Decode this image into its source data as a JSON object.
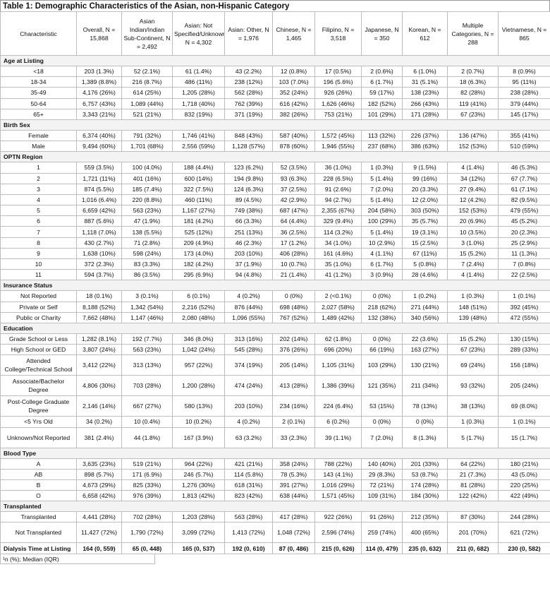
{
  "title": "Table 1: Demographic Characteristics of the Asian, non-Hispanic Category",
  "columns": [
    "Characteristic",
    "Overall, N = 15,868",
    "Asian Indian/Indian Sub-Continent, N = 2,492",
    "Asian: Not Specified/Unknown, N = 4,302",
    "Asian: Other, N = 1,976",
    "Chinese, N = 1,465",
    "Filipino, N = 3,518",
    "Japanese, N = 350",
    "Korean, N = 612",
    "Multiple Categories, N = 288",
    "Vietnamese, N = 865"
  ],
  "sections": [
    {
      "label": "Age at Listing",
      "rows": [
        {
          "label": "<18",
          "values": [
            "203 (1.3%)",
            "52 (2.1%)",
            "61 (1.4%)",
            "43 (2.2%)",
            "12 (0.8%)",
            "17 (0.5%)",
            "2 (0.6%)",
            "6 (1.0%)",
            "2 (0.7%)",
            "8 (0.9%)"
          ]
        },
        {
          "label": "18-34",
          "values": [
            "1,389 (8.8%)",
            "216 (8.7%)",
            "486 (11%)",
            "238 (12%)",
            "103 (7.0%)",
            "196 (5.6%)",
            "6 (1.7%)",
            "31 (5.1%)",
            "18 (6.3%)",
            "95 (11%)"
          ]
        },
        {
          "label": "35-49",
          "values": [
            "4,176 (26%)",
            "614 (25%)",
            "1,205 (28%)",
            "562 (28%)",
            "352 (24%)",
            "926 (26%)",
            "59 (17%)",
            "138 (23%)",
            "82 (28%)",
            "238 (28%)"
          ]
        },
        {
          "label": "50-64",
          "values": [
            "6,757 (43%)",
            "1,089 (44%)",
            "1,718 (40%)",
            "762 (39%)",
            "616 (42%)",
            "1,626 (46%)",
            "182 (52%)",
            "266 (43%)",
            "119 (41%)",
            "379 (44%)"
          ]
        },
        {
          "label": "65+",
          "values": [
            "3,343 (21%)",
            "521 (21%)",
            "832 (19%)",
            "371 (19%)",
            "382 (26%)",
            "753 (21%)",
            "101 (29%)",
            "171 (28%)",
            "67 (23%)",
            "145 (17%)"
          ]
        }
      ]
    },
    {
      "label": "Birth Sex",
      "rows": [
        {
          "label": "Female",
          "values": [
            "6,374 (40%)",
            "791 (32%)",
            "1,746 (41%)",
            "848 (43%)",
            "587 (40%)",
            "1,572 (45%)",
            "113 (32%)",
            "226 (37%)",
            "136 (47%)",
            "355 (41%)"
          ]
        },
        {
          "label": "Male",
          "values": [
            "9,494 (60%)",
            "1,701 (68%)",
            "2,556 (59%)",
            "1,128 (57%)",
            "878 (60%)",
            "1,946 (55%)",
            "237 (68%)",
            "386 (63%)",
            "152 (53%)",
            "510 (59%)"
          ]
        }
      ]
    },
    {
      "label": "OPTN Region",
      "rows": [
        {
          "label": "1",
          "values": [
            "559 (3.5%)",
            "100 (4.0%)",
            "188 (4.4%)",
            "123 (6.2%)",
            "52 (3.5%)",
            "36 (1.0%)",
            "1 (0.3%)",
            "9 (1.5%)",
            "4 (1.4%)",
            "46 (5.3%)"
          ]
        },
        {
          "label": "2",
          "values": [
            "1,721 (11%)",
            "401 (16%)",
            "600 (14%)",
            "194 (9.8%)",
            "93 (6.3%)",
            "228 (6.5%)",
            "5 (1.4%)",
            "99 (16%)",
            "34 (12%)",
            "67 (7.7%)"
          ]
        },
        {
          "label": "3",
          "values": [
            "874 (5.5%)",
            "185 (7.4%)",
            "322 (7.5%)",
            "124 (6.3%)",
            "37 (2.5%)",
            "91 (2.6%)",
            "7 (2.0%)",
            "20 (3.3%)",
            "27 (9.4%)",
            "61 (7.1%)"
          ]
        },
        {
          "label": "4",
          "values": [
            "1,016 (6.4%)",
            "220 (8.8%)",
            "460 (11%)",
            "89 (4.5%)",
            "42 (2.9%)",
            "94 (2.7%)",
            "5 (1.4%)",
            "12 (2.0%)",
            "12 (4.2%)",
            "82 (9.5%)"
          ]
        },
        {
          "label": "5",
          "values": [
            "6,659 (42%)",
            "563 (23%)",
            "1,167 (27%)",
            "749 (38%)",
            "687 (47%)",
            "2,355 (67%)",
            "204 (58%)",
            "303 (50%)",
            "152 (53%)",
            "479 (55%)"
          ]
        },
        {
          "label": "6",
          "values": [
            "887 (5.6%)",
            "47 (1.9%)",
            "181 (4.2%)",
            "66 (3.3%)",
            "64 (4.4%)",
            "329 (9.4%)",
            "100 (29%)",
            "35 (5.7%)",
            "20 (6.9%)",
            "45 (5.2%)"
          ]
        },
        {
          "label": "7",
          "values": [
            "1,118 (7.0%)",
            "138 (5.5%)",
            "525 (12%)",
            "251 (13%)",
            "36 (2.5%)",
            "114 (3.2%)",
            "5 (1.4%)",
            "19 (3.1%)",
            "10 (3.5%)",
            "20 (2.3%)"
          ]
        },
        {
          "label": "8",
          "values": [
            "430 (2.7%)",
            "71 (2.8%)",
            "209 (4.9%)",
            "46 (2.3%)",
            "17 (1.2%)",
            "34 (1.0%)",
            "10 (2.9%)",
            "15 (2.5%)",
            "3 (1.0%)",
            "25 (2.9%)"
          ]
        },
        {
          "label": "9",
          "values": [
            "1,638 (10%)",
            "598 (24%)",
            "173 (4.0%)",
            "203 (10%)",
            "406 (28%)",
            "161 (4.6%)",
            "4 (1.1%)",
            "67 (11%)",
            "15 (5.2%)",
            "11 (1.3%)"
          ]
        },
        {
          "label": "10",
          "values": [
            "372 (2.3%)",
            "83 (3.3%)",
            "182 (4.2%)",
            "37 (1.9%)",
            "10 (0.7%)",
            "35 (1.0%)",
            "6 (1.7%)",
            "5 (0.8%)",
            "7 (2.4%)",
            "7 (0.8%)"
          ]
        },
        {
          "label": "11",
          "values": [
            "594 (3.7%)",
            "86 (3.5%)",
            "295 (6.9%)",
            "94 (4.8%)",
            "21 (1.4%)",
            "41 (1.2%)",
            "3 (0.9%)",
            "28 (4.6%)",
            "4 (1.4%)",
            "22 (2.5%)"
          ]
        }
      ]
    },
    {
      "label": "Insurance Status",
      "rows": [
        {
          "label": "Not Reported",
          "values": [
            "18 (0.1%)",
            "3 (0.1%)",
            "6 (0.1%)",
            "4 (0.2%)",
            "0 (0%)",
            "2 (<0.1%)",
            "0 (0%)",
            "1 (0.2%)",
            "1 (0.3%)",
            "1 (0.1%)"
          ]
        },
        {
          "label": "Private or Self",
          "values": [
            "8,188 (52%)",
            "1,342 (54%)",
            "2,216 (52%)",
            "876 (44%)",
            "698 (48%)",
            "2,027 (58%)",
            "218 (62%)",
            "271 (44%)",
            "148 (51%)",
            "392 (45%)"
          ]
        },
        {
          "label": "Public or Charity",
          "values": [
            "7,662 (48%)",
            "1,147 (46%)",
            "2,080 (48%)",
            "1,096 (55%)",
            "767 (52%)",
            "1,489 (42%)",
            "132 (38%)",
            "340 (56%)",
            "139 (48%)",
            "472 (55%)"
          ]
        }
      ]
    },
    {
      "label": "Education",
      "rows": [
        {
          "label": "Grade School or Less",
          "values": [
            "1,282 (8.1%)",
            "192 (7.7%)",
            "346 (8.0%)",
            "313 (16%)",
            "202 (14%)",
            "62 (1.8%)",
            "0 (0%)",
            "22 (3.6%)",
            "15 (5.2%)",
            "130 (15%)"
          ]
        },
        {
          "label": "High School or GED",
          "values": [
            "3,807 (24%)",
            "563 (23%)",
            "1,042 (24%)",
            "545 (28%)",
            "376 (26%)",
            "696 (20%)",
            "66 (19%)",
            "163 (27%)",
            "67 (23%)",
            "289 (33%)"
          ]
        },
        {
          "label": "Attended College/Technical School",
          "tall": true,
          "values": [
            "3,412 (22%)",
            "313 (13%)",
            "957 (22%)",
            "374 (19%)",
            "205 (14%)",
            "1,105 (31%)",
            "103 (29%)",
            "130 (21%)",
            "69 (24%)",
            "156 (18%)"
          ]
        },
        {
          "label": "Associate/Bachelor Degree",
          "tall": true,
          "values": [
            "4,806 (30%)",
            "703 (28%)",
            "1,200 (28%)",
            "474 (24%)",
            "413 (28%)",
            "1,386 (39%)",
            "121 (35%)",
            "211 (34%)",
            "93 (32%)",
            "205 (24%)"
          ]
        },
        {
          "label": "Post-College Graduate Degree",
          "tall": true,
          "values": [
            "2,146 (14%)",
            "667 (27%)",
            "580 (13%)",
            "203 (10%)",
            "234 (16%)",
            "224 (6.4%)",
            "53 (15%)",
            "78 (13%)",
            "38 (13%)",
            "69 (8.0%)"
          ]
        },
        {
          "label": "<5 Yrs Old",
          "values": [
            "34 (0.2%)",
            "10 (0.4%)",
            "10 (0.2%)",
            "4 (0.2%)",
            "2 (0.1%)",
            "6 (0.2%)",
            "0 (0%)",
            "0 (0%)",
            "1 (0.3%)",
            "1 (0.1%)"
          ]
        },
        {
          "label": "Unknown/Not Reported",
          "tall": true,
          "values": [
            "381 (2.4%)",
            "44 (1.8%)",
            "167 (3.9%)",
            "63 (3.2%)",
            "33 (2.3%)",
            "39 (1.1%)",
            "7 (2.0%)",
            "8 (1.3%)",
            "5 (1.7%)",
            "15 (1.7%)"
          ]
        }
      ]
    },
    {
      "label": "Blood Type",
      "rows": [
        {
          "label": "A",
          "values": [
            "3,635 (23%)",
            "519 (21%)",
            "964 (22%)",
            "421 (21%)",
            "358 (24%)",
            "788 (22%)",
            "140 (40%)",
            "201 (33%)",
            "64 (22%)",
            "180 (21%)"
          ]
        },
        {
          "label": "AB",
          "values": [
            "898 (5.7%)",
            "171 (6.9%)",
            "246 (5.7%)",
            "114 (5.8%)",
            "78 (5.3%)",
            "143 (4.1%)",
            "29 (8.3%)",
            "53 (8.7%)",
            "21 (7.3%)",
            "43 (5.0%)"
          ]
        },
        {
          "label": "B",
          "values": [
            "4,673 (29%)",
            "825 (33%)",
            "1,276 (30%)",
            "618 (31%)",
            "391 (27%)",
            "1,016 (29%)",
            "72 (21%)",
            "174 (28%)",
            "81 (28%)",
            "220 (25%)"
          ]
        },
        {
          "label": "O",
          "values": [
            "6,658 (42%)",
            "976 (39%)",
            "1,813 (42%)",
            "823 (42%)",
            "638 (44%)",
            "1,571 (45%)",
            "109 (31%)",
            "184 (30%)",
            "122 (42%)",
            "422 (49%)"
          ]
        }
      ]
    },
    {
      "label": "Transplanted",
      "rows": [
        {
          "label": "Transplanted",
          "values": [
            "4,441 (28%)",
            "702 (28%)",
            "1,203 (28%)",
            "563 (28%)",
            "417 (28%)",
            "922 (26%)",
            "91 (26%)",
            "212 (35%)",
            "87 (30%)",
            "244 (28%)"
          ]
        },
        {
          "label": "Not Transplanted",
          "tall": true,
          "values": [
            "11,427 (72%)",
            "1,790 (72%)",
            "3,099 (72%)",
            "1,413 (72%)",
            "1,048 (72%)",
            "2,596 (74%)",
            "259 (74%)",
            "400 (65%)",
            "201 (70%)",
            "621 (72%)"
          ]
        }
      ]
    }
  ],
  "dialysis": {
    "label": "Dialysis Time at Listing",
    "values": [
      "164 (0, 559)",
      "65 (0, 448)",
      "165 (0, 537)",
      "192 (0, 610)",
      "87 (0, 486)",
      "215 (0, 626)",
      "114 (0, 479)",
      "235 (0, 632)",
      "211 (0, 682)",
      "230 (0, 582)"
    ]
  },
  "footnote": "¹n (%); Median (IQR)"
}
